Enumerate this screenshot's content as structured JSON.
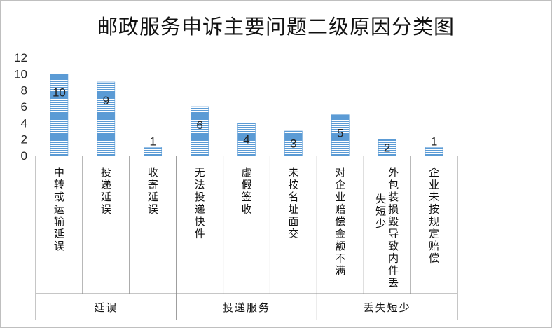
{
  "chart_data": {
    "type": "bar",
    "title": "邮政服务申诉主要问题二级原因分类图",
    "ylim": [
      0,
      12
    ],
    "yticks": [
      0,
      2,
      4,
      6,
      8,
      10,
      12
    ],
    "grid": false,
    "legend": "none",
    "bar_color": "#5b9bd5",
    "groups": [
      {
        "label": "延误",
        "categories": [
          "中转或运输延误",
          "投递延误",
          "收寄延误"
        ],
        "values": [
          10,
          9,
          1
        ]
      },
      {
        "label": "投递服务",
        "categories": [
          "无法投递快件",
          "虚假签收",
          "未按名址面交"
        ],
        "values": [
          6,
          4,
          3
        ]
      },
      {
        "label": "丢失短少",
        "categories": [
          "对企业赔偿金额不满",
          "外包装损毁导致内件丢失短少",
          "企业未按规定赔偿"
        ],
        "values": [
          5,
          2,
          1
        ]
      }
    ]
  }
}
